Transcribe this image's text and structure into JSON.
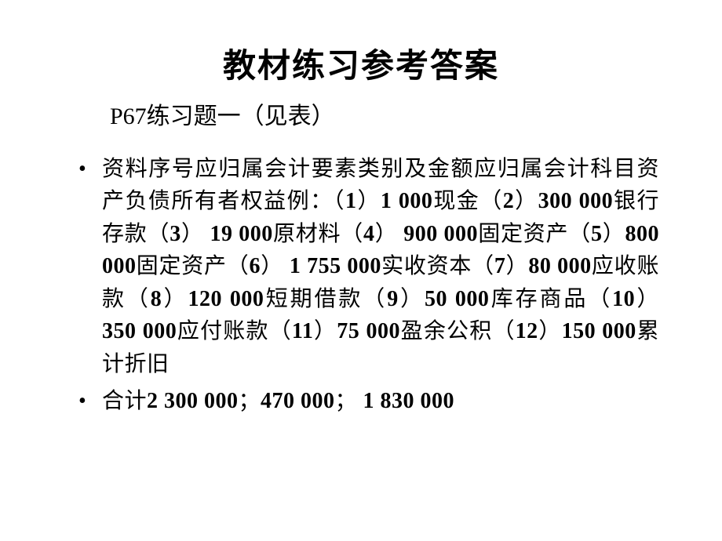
{
  "slide": {
    "title": "教材练习参考答案",
    "subtitle": "P67练习题一（见表）",
    "bullets": [
      {
        "runs": [
          {
            "t": "资料序号应归属会计要素类别及金额应归属会计科目资产负债所有者权益例：（",
            "b": false
          },
          {
            "t": "1",
            "b": true
          },
          {
            "t": "）",
            "b": false
          },
          {
            "t": "1 000",
            "b": true
          },
          {
            "t": "现金（",
            "b": false
          },
          {
            "t": "2",
            "b": true
          },
          {
            "t": "）",
            "b": false
          },
          {
            "t": "300 000",
            "b": true
          },
          {
            "t": "银行存款（",
            "b": false
          },
          {
            "t": "3",
            "b": true
          },
          {
            "t": "）  ",
            "b": false
          },
          {
            "t": "19 000",
            "b": true
          },
          {
            "t": "原材料（",
            "b": false
          },
          {
            "t": "4",
            "b": true
          },
          {
            "t": "）  ",
            "b": false
          },
          {
            "t": "900 000",
            "b": true
          },
          {
            "t": "固定资产（",
            "b": false
          },
          {
            "t": "5",
            "b": true
          },
          {
            "t": "）",
            "b": false
          },
          {
            "t": "800 000",
            "b": true
          },
          {
            "t": "固定资产（",
            "b": false
          },
          {
            "t": "6",
            "b": true
          },
          {
            "t": "）  ",
            "b": false
          },
          {
            "t": "1 755 000",
            "b": true
          },
          {
            "t": "实收资本（",
            "b": false
          },
          {
            "t": "7",
            "b": true
          },
          {
            "t": "）",
            "b": false
          },
          {
            "t": "80 000",
            "b": true
          },
          {
            "t": "应收账款（",
            "b": false
          },
          {
            "t": "8",
            "b": true
          },
          {
            "t": "）",
            "b": false
          },
          {
            "t": "120 000",
            "b": true
          },
          {
            "t": "短期借款（",
            "b": false
          },
          {
            "t": "9",
            "b": true
          },
          {
            "t": "）",
            "b": false
          },
          {
            "t": "50 000",
            "b": true
          },
          {
            "t": "库存商品（",
            "b": false
          },
          {
            "t": "10",
            "b": true
          },
          {
            "t": "） ",
            "b": false
          },
          {
            "t": "350 000",
            "b": true
          },
          {
            "t": "应付账款（",
            "b": false
          },
          {
            "t": "11",
            "b": true
          },
          {
            "t": "）",
            "b": false
          },
          {
            "t": "75 000",
            "b": true
          },
          {
            "t": "盈余公积（",
            "b": false
          },
          {
            "t": "12",
            "b": true
          },
          {
            "t": "）",
            "b": false
          },
          {
            "t": "150 000",
            "b": true
          },
          {
            "t": "累计折旧",
            "b": false
          }
        ]
      },
      {
        "runs": [
          {
            "t": "合计",
            "b": false
          },
          {
            "t": "2 300 000",
            "b": true
          },
          {
            "t": "；",
            "b": false
          },
          {
            "t": "470 000",
            "b": true
          },
          {
            "t": "；",
            "b": false
          },
          {
            "t": " 1 830 000",
            "b": true
          }
        ]
      }
    ]
  },
  "style": {
    "background_color": "#ffffff",
    "text_color": "#000000",
    "title_fontsize": 42,
    "subtitle_fontsize": 30,
    "body_fontsize": 28,
    "line_height": 1.48,
    "font_family": "SimSun / Times New Roman"
  }
}
